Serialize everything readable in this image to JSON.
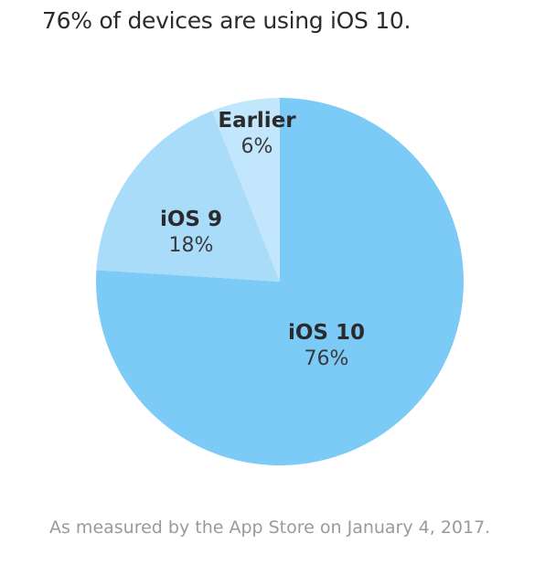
{
  "title": "76% of devices are using iOS 10.",
  "footnote": "As measured by the App Store on January 4, 2017.",
  "chart_data": {
    "type": "pie",
    "title": "76% of devices are using iOS 10.",
    "categories": [
      "iOS 10",
      "iOS 9",
      "Earlier"
    ],
    "values": [
      76,
      18,
      6
    ],
    "labels": [
      "76%",
      "18%",
      "6%"
    ],
    "colors": [
      "#7ccbf7",
      "#a9dcf9",
      "#c2e6fb"
    ],
    "start_angle": "12 o'clock, clockwise",
    "legend": "none (inline labels)",
    "note": "As measured by the App Store on January 4, 2017."
  },
  "slices": [
    {
      "name": "iOS 10",
      "pct": "76%"
    },
    {
      "name": "iOS 9",
      "pct": "18%"
    },
    {
      "name": "Earlier",
      "pct": "6%"
    }
  ]
}
